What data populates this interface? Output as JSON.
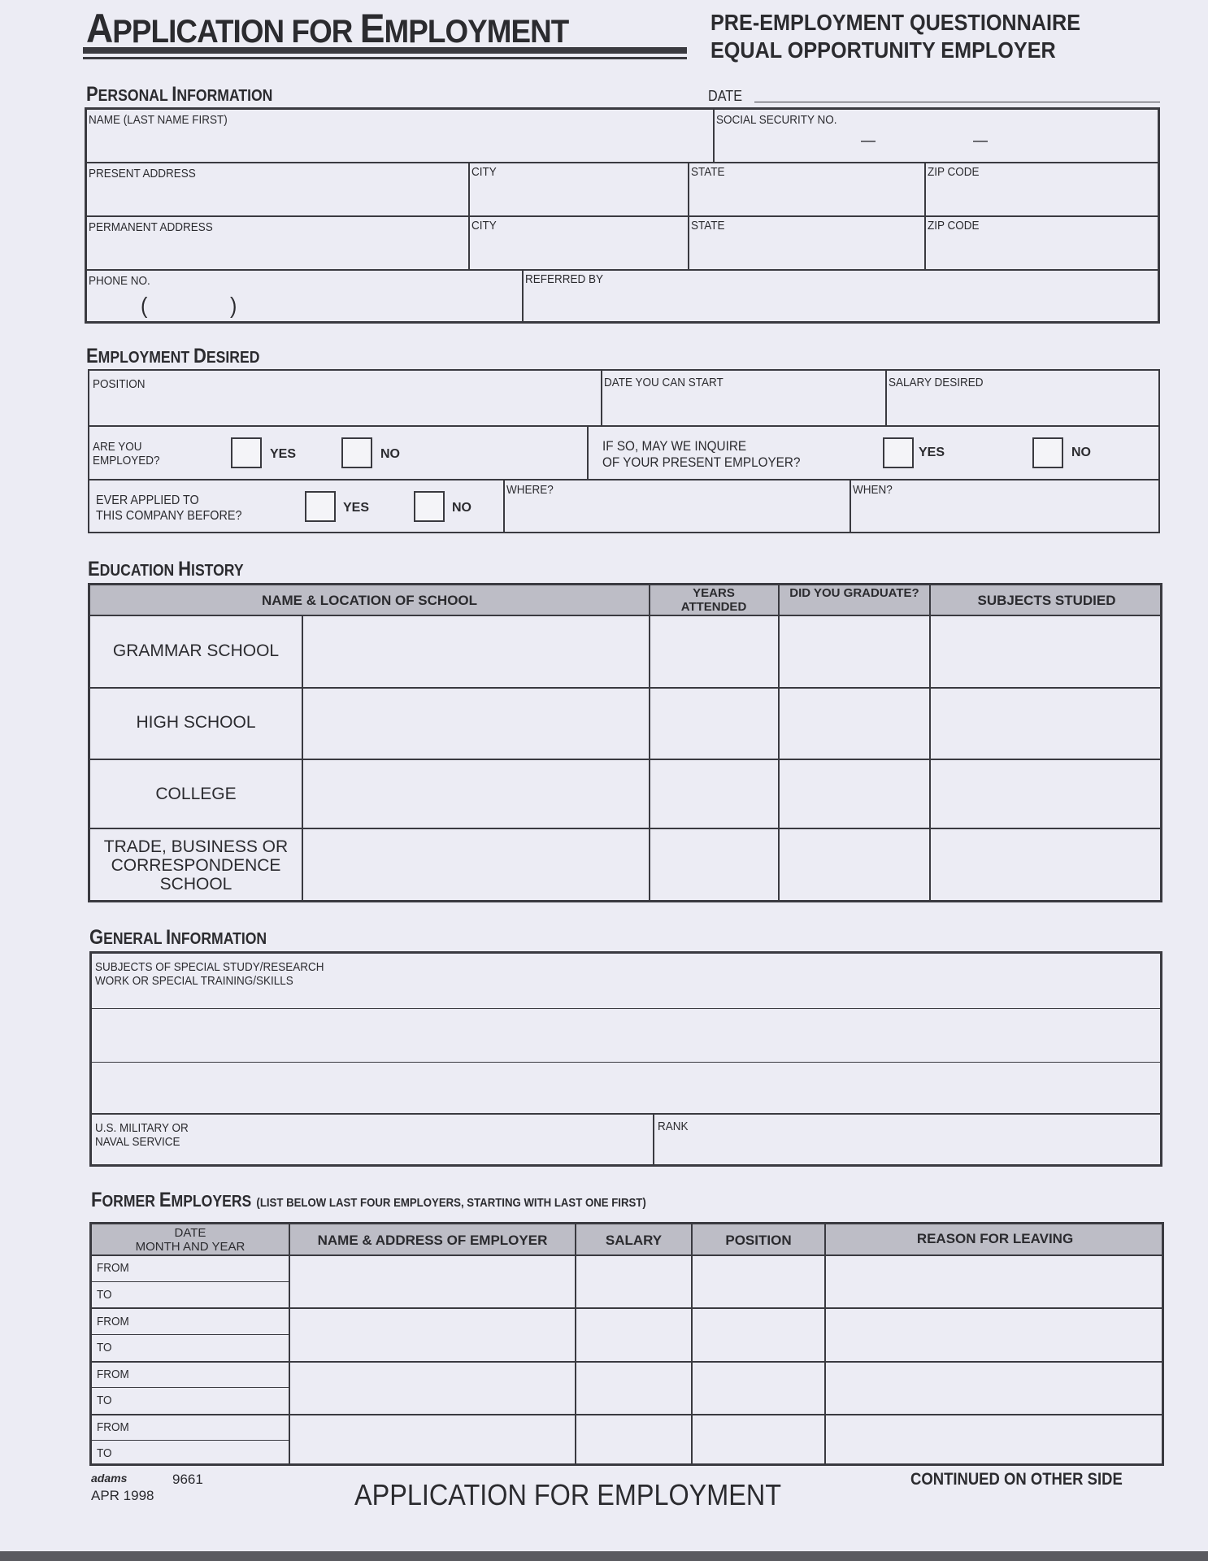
{
  "header": {
    "title_first": "A",
    "title_rest1": "PPLICATION FOR ",
    "title_E": "E",
    "title_rest2": "MPLOYMENT",
    "subtitle_1": "PRE-EMPLOYMENT QUESTIONNAIRE",
    "subtitle_2": "EQUAL OPPORTUNITY EMPLOYER"
  },
  "personal": {
    "heading_P": "P",
    "heading_rest1": "ERSONAL ",
    "heading_I": "I",
    "heading_rest2": "NFORMATION",
    "date_label": "DATE",
    "name_label": "NAME (LAST NAME FIRST)",
    "ssn_label": "SOCIAL SECURITY NO.",
    "ssn_sep": "—",
    "present_address_label": "PRESENT ADDRESS",
    "permanent_address_label": "PERMANENT ADDRESS",
    "city_label": "CITY",
    "state_label": "STATE",
    "zip_label": "ZIP CODE",
    "phone_label": "PHONE NO.",
    "phone_open": "(",
    "phone_close": ")",
    "referred_label": "REFERRED BY"
  },
  "employment": {
    "heading_E": "E",
    "heading_rest1": "MPLOYMENT ",
    "heading_D": "D",
    "heading_rest2": "ESIRED",
    "position_label": "POSITION",
    "start_label": "DATE YOU CAN START",
    "salary_label": "SALARY DESIRED",
    "employed_label_1": "ARE YOU",
    "employed_label_2": "EMPLOYED?",
    "inquire_label_1": "IF SO, MAY WE INQUIRE",
    "inquire_label_2": "OF YOUR PRESENT EMPLOYER?",
    "applied_label_1": "EVER APPLIED TO",
    "applied_label_2": "THIS COMPANY BEFORE?",
    "where_label": "WHERE?",
    "when_label": "WHEN?",
    "yes": "YES",
    "no": "NO"
  },
  "education": {
    "heading_E": "E",
    "heading_rest1": "DUCATION ",
    "heading_H": "H",
    "heading_rest2": "ISTORY",
    "columns": [
      "NAME & LOCATION OF SCHOOL",
      "YEARS ATTENDED",
      "DID YOU GRADUATE?",
      "SUBJECTS STUDIED"
    ],
    "rows": [
      "GRAMMAR SCHOOL",
      "HIGH SCHOOL",
      "COLLEGE",
      "TRADE, BUSINESS OR CORRESPONDENCE SCHOOL"
    ]
  },
  "general": {
    "heading_G": "G",
    "heading_rest1": "ENERAL ",
    "heading_I": "I",
    "heading_rest2": "NFORMATION",
    "subjects_label_1": "SUBJECTS OF SPECIAL STUDY/RESEARCH",
    "subjects_label_2": "WORK OR SPECIAL TRAINING/SKILLS",
    "military_label_1": "U.S. MILITARY OR",
    "military_label_2": "NAVAL SERVICE",
    "rank_label": "RANK"
  },
  "former": {
    "heading_F": "F",
    "heading_rest1": "ORMER ",
    "heading_E": "E",
    "heading_rest2": "MPLOYERS",
    "heading_note": "(LIST BELOW LAST FOUR EMPLOYERS, STARTING WITH LAST ONE FIRST)",
    "date_col_1": "DATE",
    "date_col_2": "MONTH AND YEAR",
    "columns": [
      "NAME & ADDRESS OF EMPLOYER",
      "SALARY",
      "POSITION",
      "REASON FOR LEAVING"
    ],
    "from": "FROM",
    "to": "TO"
  },
  "footer": {
    "logo": "adams",
    "form_number": "9661",
    "date": "APR 1998",
    "title": "APPLICATION FOR EMPLOYMENT",
    "continued": "CONTINUED ON OTHER SIDE"
  }
}
